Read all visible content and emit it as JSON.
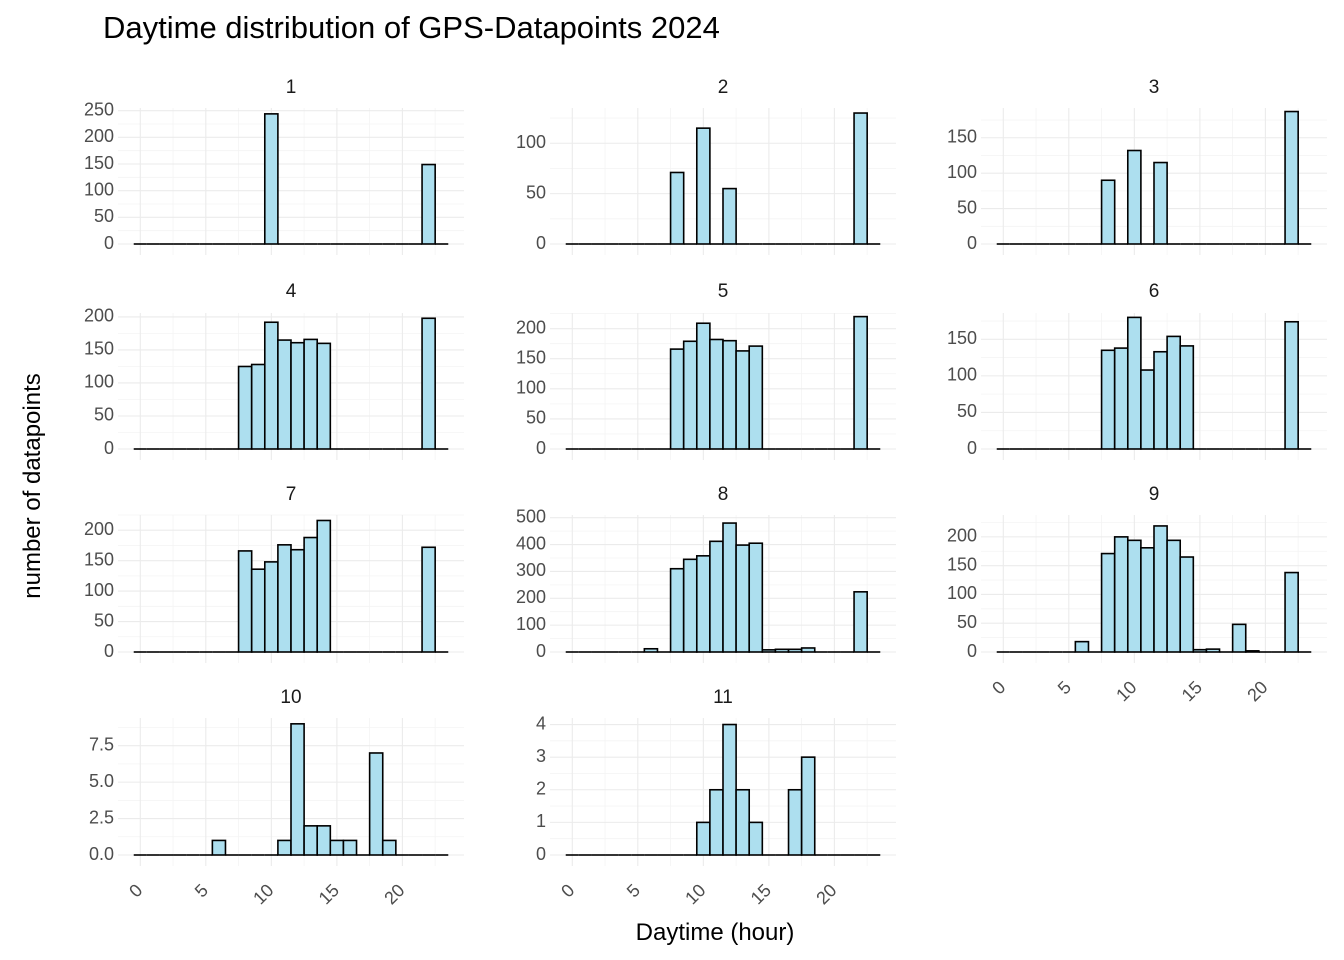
{
  "chart_data": {
    "type": "bar",
    "title": "Daytime distribution of GPS-Datapoints 2024",
    "xlabel": "Daytime (hour)",
    "ylabel": "number of datapoints",
    "x_ticks": [
      "0",
      "5",
      "10",
      "15",
      "20"
    ],
    "xlim": [
      -0.5,
      23.5
    ],
    "bin_width": 1,
    "bar_fill": "#ADDFEF",
    "bar_stroke": "#000000",
    "grid": true,
    "panels": [
      {
        "label": "1",
        "ylim": [
          0,
          255
        ],
        "y_ticks": [
          0,
          50,
          100,
          150,
          200,
          250
        ],
        "y_tick_labels": [
          "0",
          "50",
          "100",
          "150",
          "200",
          "250"
        ],
        "bins": [
          [
            10,
            244
          ],
          [
            22,
            149
          ]
        ]
      },
      {
        "label": "2",
        "ylim": [
          0,
          135
        ],
        "y_ticks": [
          0,
          50,
          100
        ],
        "y_tick_labels": [
          "0",
          "50",
          "100"
        ],
        "bins": [
          [
            8,
            71
          ],
          [
            10,
            115
          ],
          [
            12,
            55
          ],
          [
            22,
            130
          ]
        ]
      },
      {
        "label": "3",
        "ylim": [
          0,
          192
        ],
        "y_ticks": [
          0,
          50,
          100,
          150
        ],
        "y_tick_labels": [
          "0",
          "50",
          "100",
          "150"
        ],
        "bins": [
          [
            8,
            90
          ],
          [
            10,
            132
          ],
          [
            12,
            115
          ],
          [
            22,
            187
          ]
        ]
      },
      {
        "label": "4",
        "ylim": [
          0,
          206
        ],
        "y_ticks": [
          0,
          50,
          100,
          150,
          200
        ],
        "y_tick_labels": [
          "0",
          "50",
          "100",
          "150",
          "200"
        ],
        "bins": [
          [
            8,
            125
          ],
          [
            9,
            128
          ],
          [
            10,
            192
          ],
          [
            11,
            165
          ],
          [
            12,
            161
          ],
          [
            13,
            166
          ],
          [
            14,
            160
          ],
          [
            22,
            198
          ]
        ]
      },
      {
        "label": "5",
        "ylim": [
          0,
          226
        ],
        "y_ticks": [
          0,
          50,
          100,
          150,
          200
        ],
        "y_tick_labels": [
          "0",
          "50",
          "100",
          "150",
          "200"
        ],
        "bins": [
          [
            8,
            166
          ],
          [
            9,
            179
          ],
          [
            10,
            209
          ],
          [
            11,
            182
          ],
          [
            12,
            180
          ],
          [
            13,
            163
          ],
          [
            14,
            171
          ],
          [
            22,
            220
          ]
        ]
      },
      {
        "label": "6",
        "ylim": [
          0,
          186
        ],
        "y_ticks": [
          0,
          50,
          100,
          150
        ],
        "y_tick_labels": [
          "0",
          "50",
          "100",
          "150"
        ],
        "bins": [
          [
            8,
            135
          ],
          [
            9,
            138
          ],
          [
            10,
            180
          ],
          [
            11,
            108
          ],
          [
            12,
            133
          ],
          [
            13,
            154
          ],
          [
            14,
            141
          ],
          [
            22,
            174
          ]
        ]
      },
      {
        "label": "7",
        "ylim": [
          0,
          225
        ],
        "y_ticks": [
          0,
          50,
          100,
          150,
          200
        ],
        "y_tick_labels": [
          "0",
          "50",
          "100",
          "150",
          "200"
        ],
        "bins": [
          [
            8,
            166
          ],
          [
            9,
            136
          ],
          [
            10,
            148
          ],
          [
            11,
            176
          ],
          [
            12,
            168
          ],
          [
            13,
            188
          ],
          [
            14,
            216
          ],
          [
            22,
            172
          ]
        ]
      },
      {
        "label": "8",
        "ylim": [
          0,
          510
        ],
        "y_ticks": [
          0,
          100,
          200,
          300,
          400,
          500
        ],
        "y_tick_labels": [
          "0",
          "100",
          "200",
          "300",
          "400",
          "500"
        ],
        "bins": [
          [
            6,
            12
          ],
          [
            8,
            310
          ],
          [
            9,
            345
          ],
          [
            10,
            358
          ],
          [
            11,
            412
          ],
          [
            12,
            480
          ],
          [
            13,
            398
          ],
          [
            14,
            405
          ],
          [
            15,
            8
          ],
          [
            16,
            10
          ],
          [
            17,
            10
          ],
          [
            18,
            15
          ],
          [
            22,
            224
          ]
        ]
      },
      {
        "label": "9",
        "ylim": [
          0,
          238
        ],
        "y_ticks": [
          0,
          50,
          100,
          150,
          200
        ],
        "y_tick_labels": [
          "0",
          "50",
          "100",
          "150",
          "200"
        ],
        "bins": [
          [
            6,
            18
          ],
          [
            8,
            171
          ],
          [
            9,
            200
          ],
          [
            10,
            194
          ],
          [
            11,
            181
          ],
          [
            12,
            219
          ],
          [
            13,
            194
          ],
          [
            14,
            165
          ],
          [
            15,
            4
          ],
          [
            16,
            5
          ],
          [
            18,
            48
          ],
          [
            19,
            2
          ],
          [
            22,
            138
          ]
        ]
      },
      {
        "label": "10",
        "ylim": [
          0,
          9.4
        ],
        "y_ticks": [
          0,
          2.5,
          5,
          7.5
        ],
        "y_tick_labels": [
          "0.0",
          "2.5",
          "5.0",
          "7.5"
        ],
        "bins": [
          [
            6,
            1
          ],
          [
            11,
            1
          ],
          [
            12,
            9
          ],
          [
            13,
            2
          ],
          [
            14,
            2
          ],
          [
            15,
            1
          ],
          [
            16,
            1
          ],
          [
            18,
            7
          ],
          [
            19,
            1
          ]
        ]
      },
      {
        "label": "11",
        "ylim": [
          0,
          4.2
        ],
        "y_ticks": [
          0,
          1,
          2,
          3,
          4
        ],
        "y_tick_labels": [
          "0",
          "1",
          "2",
          "3",
          "4"
        ],
        "bins": [
          [
            10,
            1
          ],
          [
            11,
            2
          ],
          [
            12,
            4
          ],
          [
            13,
            2
          ],
          [
            14,
            1
          ],
          [
            17,
            2
          ],
          [
            18,
            3
          ]
        ]
      }
    ]
  }
}
